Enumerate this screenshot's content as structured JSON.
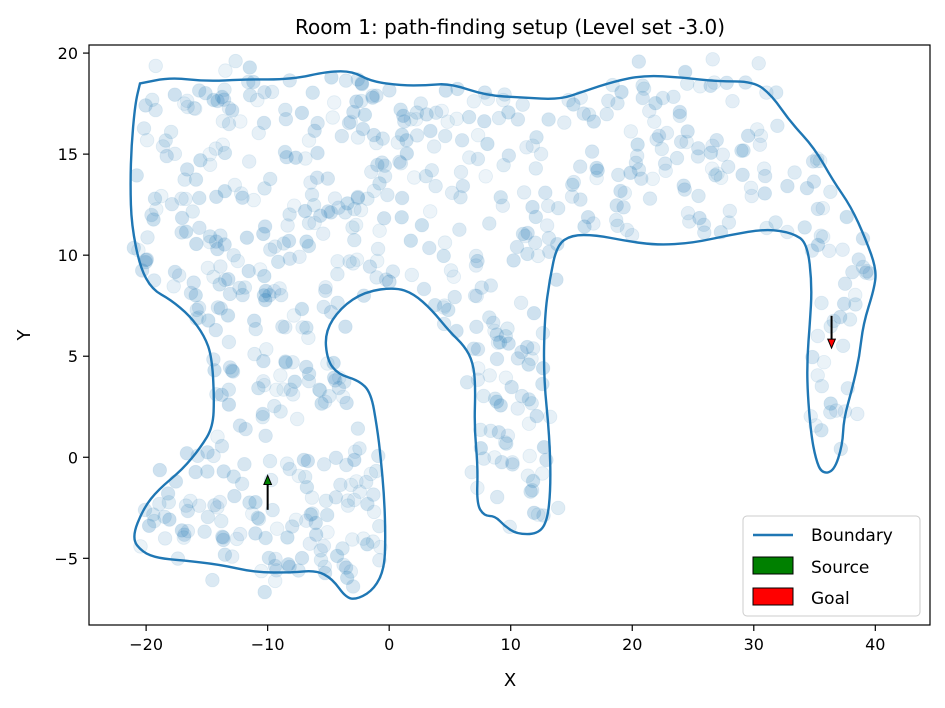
{
  "chart_data": {
    "type": "scatter",
    "title": "Room 1: path-finding setup (Level set -3.0)",
    "xlabel": "X",
    "ylabel": "Y",
    "xlim": [
      -24.7,
      44.5
    ],
    "ylim": [
      -8.3,
      20.4
    ],
    "xticks": [
      -20,
      -10,
      0,
      10,
      20,
      30,
      40
    ],
    "yticks": [
      -5,
      0,
      5,
      10,
      15,
      20
    ],
    "grid": false,
    "legend_position": "lower-right",
    "legend": [
      {
        "label": "Boundary",
        "kind": "line",
        "color": "#1f77b4"
      },
      {
        "label": "Source",
        "kind": "patch",
        "color": "#008000"
      },
      {
        "label": "Goal",
        "kind": "patch",
        "color": "#ff0000"
      }
    ],
    "colors": {
      "points": "#1f77b4",
      "boundary": "#1f77b4",
      "source": "#008000",
      "goal": "#ff0000",
      "arrow": "#000000"
    },
    "boundary": [
      [
        -20.5,
        18.5
      ],
      [
        -18,
        18.8
      ],
      [
        -15,
        18.6
      ],
      [
        -12,
        18.7
      ],
      [
        -8,
        18.7
      ],
      [
        -5,
        19.1
      ],
      [
        -3,
        19.1
      ],
      [
        -1.5,
        18.6
      ],
      [
        1,
        18.4
      ],
      [
        3,
        18.4
      ],
      [
        5,
        18.5
      ],
      [
        8,
        17.9
      ],
      [
        11,
        17.8
      ],
      [
        14,
        17.7
      ],
      [
        16,
        18.1
      ],
      [
        18.5,
        18.6
      ],
      [
        21,
        18.9
      ],
      [
        24,
        18.8
      ],
      [
        27,
        18.6
      ],
      [
        30,
        18.6
      ],
      [
        31.5,
        17.9
      ],
      [
        33,
        16.6
      ],
      [
        35,
        15.3
      ],
      [
        36.5,
        13.7
      ],
      [
        38,
        12.4
      ],
      [
        39.2,
        10.8
      ],
      [
        40.1,
        9.3
      ],
      [
        39.9,
        8.3
      ],
      [
        39,
        6.6
      ],
      [
        38.7,
        5.0
      ],
      [
        38.1,
        3.4
      ],
      [
        37.4,
        1.9
      ],
      [
        37.3,
        0.6
      ],
      [
        36.6,
        -0.7
      ],
      [
        35.6,
        -0.8
      ],
      [
        35.1,
        -0.1
      ],
      [
        34.7,
        1.2
      ],
      [
        34.4,
        3.4
      ],
      [
        34.4,
        5.0
      ],
      [
        34.6,
        6.5
      ],
      [
        34.8,
        8.5
      ],
      [
        34.4,
        10.6
      ],
      [
        33.2,
        11.1
      ],
      [
        31,
        11.3
      ],
      [
        28,
        11.0
      ],
      [
        25,
        10.6
      ],
      [
        22,
        10.5
      ],
      [
        19.5,
        10.7
      ],
      [
        17,
        11.0
      ],
      [
        15,
        11.0
      ],
      [
        13.8,
        10.5
      ],
      [
        13.2,
        8.8
      ],
      [
        12.8,
        7.0
      ],
      [
        12.7,
        4.0
      ],
      [
        13.2,
        1.0
      ],
      [
        13.3,
        -1.5
      ],
      [
        13.0,
        -3.2
      ],
      [
        12.2,
        -3.8
      ],
      [
        10.5,
        -3.8
      ],
      [
        9.5,
        -3.4
      ],
      [
        8.7,
        -2.9
      ],
      [
        7.8,
        -2.9
      ],
      [
        7.2,
        -2.3
      ],
      [
        7.3,
        -0.5
      ],
      [
        7.0,
        1.5
      ],
      [
        7.1,
        3.5
      ],
      [
        6.9,
        4.7
      ],
      [
        6.2,
        5.5
      ],
      [
        5.0,
        6.2
      ],
      [
        3.5,
        7.3
      ],
      [
        2,
        8.1
      ],
      [
        0.5,
        8.4
      ],
      [
        -2,
        8.2
      ],
      [
        -4,
        7.4
      ],
      [
        -5.3,
        6.2
      ],
      [
        -5.1,
        4.8
      ],
      [
        -4.2,
        4.1
      ],
      [
        -2.5,
        3.8
      ],
      [
        -1.5,
        3.2
      ],
      [
        -1.0,
        1.5
      ],
      [
        -0.7,
        0
      ],
      [
        -0.4,
        -2
      ],
      [
        -0.3,
        -4
      ],
      [
        -0.4,
        -5.5
      ],
      [
        -1.2,
        -6.5
      ],
      [
        -2.5,
        -7.0
      ],
      [
        -3.5,
        -7.0
      ],
      [
        -4.7,
        -6.0
      ],
      [
        -6,
        -5.6
      ],
      [
        -8,
        -5.7
      ],
      [
        -11,
        -5.7
      ],
      [
        -14,
        -5.3
      ],
      [
        -17,
        -5.1
      ],
      [
        -19,
        -5.0
      ],
      [
        -20.3,
        -4.7
      ],
      [
        -21.2,
        -4.0
      ],
      [
        -20.2,
        -2.5
      ],
      [
        -19,
        -1.6
      ],
      [
        -17,
        -0.6
      ],
      [
        -15.5,
        0.5
      ],
      [
        -14.5,
        1.5
      ],
      [
        -14.4,
        3.0
      ],
      [
        -14.6,
        5.0
      ],
      [
        -15.2,
        6.0
      ],
      [
        -16.4,
        7.0
      ],
      [
        -18.0,
        7.8
      ],
      [
        -19.5,
        8.3
      ],
      [
        -20.5,
        9.4
      ],
      [
        -21.2,
        11.5
      ],
      [
        -21.3,
        13.5
      ],
      [
        -21.2,
        15.5
      ],
      [
        -20.9,
        17.5
      ]
    ],
    "source_arrow": {
      "x": -10.0,
      "y_from": -2.6,
      "y_to": -0.9
    },
    "goal_arrow": {
      "x": 36.4,
      "y_from": 7.0,
      "y_to": 5.4
    }
  }
}
